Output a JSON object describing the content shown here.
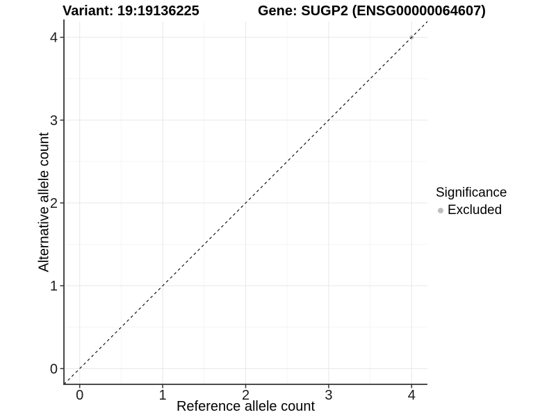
{
  "chart_data": {
    "type": "scatter",
    "title_left": "Variant: 19:19136225",
    "title_right": "Gene: SUGP2 (ENSG00000064607)",
    "xlabel": "Reference allele count",
    "ylabel": "Alternative allele count",
    "xlim": [
      -0.19,
      4.19
    ],
    "ylim": [
      -0.19,
      4.19
    ],
    "xticks": [
      0,
      1,
      2,
      3,
      4
    ],
    "yticks": [
      0,
      1,
      2,
      3,
      4
    ],
    "minor_xticks": [
      0.5,
      1.5,
      2.5,
      3.5
    ],
    "minor_yticks": [
      0.5,
      1.5,
      2.5,
      3.5
    ],
    "grid": "major+minor",
    "identity_line": {
      "style": "dashed",
      "from": [
        -0.19,
        -0.19
      ],
      "to": [
        4.19,
        4.19
      ],
      "color": "#000000"
    },
    "series": [
      {
        "name": "Excluded",
        "color": "#bebebe",
        "points": [
          [
            4,
            4
          ]
        ]
      }
    ],
    "legend": {
      "title": "Significance",
      "position": "right",
      "entries": [
        {
          "label": "Excluded",
          "color": "#bebebe"
        }
      ]
    },
    "colors": {
      "background": "#ffffff",
      "grid_major": "#e7e7e7",
      "grid_minor": "#f4f4f4",
      "axis_line": "#333333",
      "tick": "#333333",
      "text": "#1a1a1a"
    }
  }
}
